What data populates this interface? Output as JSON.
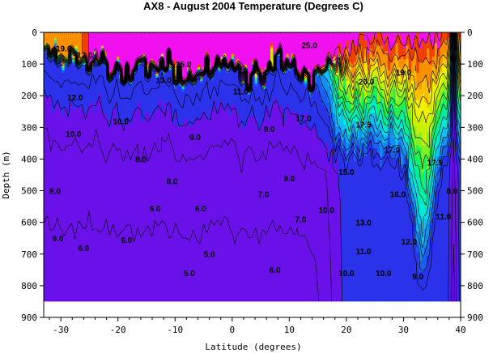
{
  "chart_data": {
    "type": "heatmap",
    "title": "AX8 - August 2004    Temperature (Degrees C)",
    "xlabel": "Latitude (degrees)",
    "ylabel": "Depth (m)",
    "xlim": [
      -33,
      40
    ],
    "ylim": [
      0,
      900
    ],
    "x_ticks": [
      -30,
      -20,
      -10,
      0,
      10,
      20,
      30,
      40
    ],
    "y_ticks": [
      0,
      100,
      200,
      300,
      400,
      500,
      600,
      700,
      800,
      900
    ],
    "colorbands": [
      {
        "min": 4,
        "max": 8,
        "color": "#6a10e8"
      },
      {
        "min": 8,
        "max": 10,
        "color": "#2a32ea"
      },
      {
        "min": 10,
        "max": 11,
        "color": "#1a60f0"
      },
      {
        "min": 11,
        "max": 12,
        "color": "#1090f0"
      },
      {
        "min": 12,
        "max": 13,
        "color": "#10c0f0"
      },
      {
        "min": 13,
        "max": 14,
        "color": "#00e8d8"
      },
      {
        "min": 14,
        "max": 15,
        "color": "#00f0a0"
      },
      {
        "min": 15,
        "max": 16,
        "color": "#20f050"
      },
      {
        "min": 16,
        "max": 17,
        "color": "#80f020"
      },
      {
        "min": 17,
        "max": 18,
        "color": "#c8f000"
      },
      {
        "min": 18,
        "max": 19,
        "color": "#f0f000"
      },
      {
        "min": 19,
        "max": 20,
        "color": "#f8c000"
      },
      {
        "min": 20,
        "max": 22,
        "color": "#f89000"
      },
      {
        "min": 22,
        "max": 25,
        "color": "#f04000"
      },
      {
        "min": 25,
        "max": 35,
        "color": "#f010f0"
      }
    ],
    "bottom_depth": 850,
    "contour_labels": [
      {
        "text": "19.0",
        "lat": -29.5,
        "depth": 60
      },
      {
        "text": "12.0",
        "lat": -25.8,
        "depth": 80
      },
      {
        "text": "15.0",
        "lat": -8.5,
        "depth": 110
      },
      {
        "text": "12.0",
        "lat": -27.5,
        "depth": 215
      },
      {
        "text": "10.0",
        "lat": -27.8,
        "depth": 330
      },
      {
        "text": "8.0",
        "lat": -31,
        "depth": 510
      },
      {
        "text": "6.0",
        "lat": -30.5,
        "depth": 660
      },
      {
        "text": "6.0",
        "lat": -26,
        "depth": 690
      },
      {
        "text": "10.0",
        "lat": -19.5,
        "depth": 290
      },
      {
        "text": "8.0",
        "lat": -16,
        "depth": 410
      },
      {
        "text": "6.0",
        "lat": -13.5,
        "depth": 565
      },
      {
        "text": "8.0",
        "lat": -10.5,
        "depth": 480
      },
      {
        "text": "9.0",
        "lat": -6.5,
        "depth": 340
      },
      {
        "text": "6.0",
        "lat": -18.5,
        "depth": 665
      },
      {
        "text": "5.0",
        "lat": -7.5,
        "depth": 770
      },
      {
        "text": "5.0",
        "lat": -4,
        "depth": 710
      },
      {
        "text": "6.0",
        "lat": -5.5,
        "depth": 565
      },
      {
        "text": "9.0",
        "lat": 6.5,
        "depth": 315
      },
      {
        "text": "7.0",
        "lat": 5.5,
        "depth": 520
      },
      {
        "text": "6.0",
        "lat": 7.5,
        "depth": 760
      },
      {
        "text": "9.0",
        "lat": 10,
        "depth": 470
      },
      {
        "text": "7.0",
        "lat": 12,
        "depth": 600
      },
      {
        "text": "11.0",
        "lat": 1.5,
        "depth": 195
      },
      {
        "text": "13.0",
        "lat": -12,
        "depth": 160
      },
      {
        "text": "17.0",
        "lat": 12.5,
        "depth": 280
      },
      {
        "text": "10.0",
        "lat": 16.5,
        "depth": 570
      },
      {
        "text": "10.0",
        "lat": 20,
        "depth": 770
      },
      {
        "text": "15.0",
        "lat": 20,
        "depth": 450
      },
      {
        "text": "13.0",
        "lat": 23,
        "depth": 610
      },
      {
        "text": "11.0",
        "lat": 23,
        "depth": 700
      },
      {
        "text": "10.0",
        "lat": 26.5,
        "depth": 770
      },
      {
        "text": "12.0",
        "lat": 31,
        "depth": 670
      },
      {
        "text": "16.0",
        "lat": 29,
        "depth": 520
      },
      {
        "text": "17.0",
        "lat": 28,
        "depth": 380
      },
      {
        "text": "17.5",
        "lat": 23,
        "depth": 300
      },
      {
        "text": "20.0",
        "lat": 23.5,
        "depth": 165
      },
      {
        "text": "19.0",
        "lat": 30,
        "depth": 135
      },
      {
        "text": "25.0",
        "lat": 13.5,
        "depth": 50
      },
      {
        "text": "17.5",
        "lat": 35.5,
        "depth": 420
      },
      {
        "text": "11.0",
        "lat": 37,
        "depth": 590
      },
      {
        "text": "8.0",
        "lat": 38.5,
        "depth": 510
      },
      {
        "text": "9.0",
        "lat": 32.5,
        "depth": 780
      }
    ]
  }
}
